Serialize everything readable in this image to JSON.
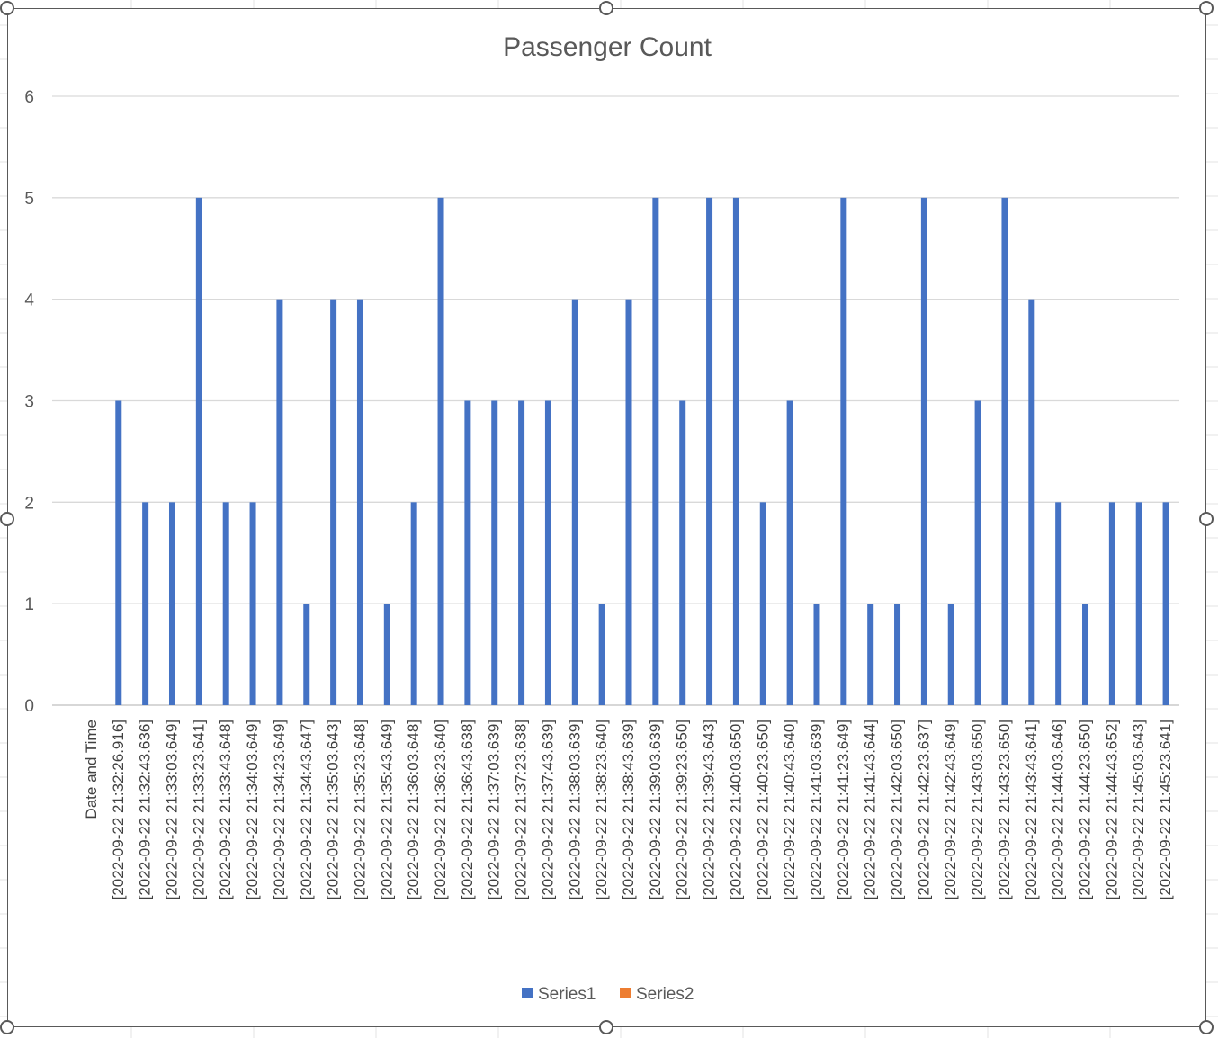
{
  "chart_data": {
    "type": "bar",
    "title": "Passenger Count",
    "ylim": [
      0,
      6
    ],
    "yticks": [
      0,
      1,
      2,
      3,
      4,
      5,
      6
    ],
    "grid": true,
    "legend_position": "bottom",
    "categories": [
      "Date and Time",
      "[2022-09-22 21:32:26.916]",
      "[2022-09-22 21:32:43.636]",
      "[2022-09-22 21:33:03.649]",
      "[2022-09-22 21:33:23.641]",
      "[2022-09-22 21:33:43.648]",
      "[2022-09-22 21:34:03.649]",
      "[2022-09-22 21:34:23.649]",
      "[2022-09-22 21:34:43.647]",
      "[2022-09-22 21:35:03.643]",
      "[2022-09-22 21:35:23.648]",
      "[2022-09-22 21:35:43.649]",
      "[2022-09-22 21:36:03.648]",
      "[2022-09-22 21:36:23.640]",
      "[2022-09-22 21:36:43.638]",
      "[2022-09-22 21:37:03.639]",
      "[2022-09-22 21:37:23.638]",
      "[2022-09-22 21:37:43.639]",
      "[2022-09-22 21:38:03.639]",
      "[2022-09-22 21:38:23.640]",
      "[2022-09-22 21:38:43.639]",
      "[2022-09-22 21:39:03.639]",
      "[2022-09-22 21:39:23.650]",
      "[2022-09-22 21:39:43.643]",
      "[2022-09-22 21:40:03.650]",
      "[2022-09-22 21:40:23.650]",
      "[2022-09-22 21:40:43.640]",
      "[2022-09-22 21:41:03.639]",
      "[2022-09-22 21:41:23.649]",
      "[2022-09-22 21:41:43.644]",
      "[2022-09-22 21:42:03.650]",
      "[2022-09-22 21:42:23.637]",
      "[2022-09-22 21:42:43.649]",
      "[2022-09-22 21:43:03.650]",
      "[2022-09-22 21:43:23.650]",
      "[2022-09-22 21:43:43.641]",
      "[2022-09-22 21:44:03.646]",
      "[2022-09-22 21:44:23.650]",
      "[2022-09-22 21:44:43.652]",
      "[2022-09-22 21:45:03.643]",
      "[2022-09-22 21:45:23.641]"
    ],
    "series": [
      {
        "name": "Series1",
        "color": "#4472c4",
        "values": [
          0,
          3,
          2,
          2,
          5,
          2,
          2,
          4,
          1,
          4,
          4,
          1,
          2,
          5,
          3,
          3,
          3,
          3,
          4,
          1,
          4,
          5,
          3,
          5,
          5,
          2,
          3,
          1,
          5,
          1,
          1,
          5,
          1,
          3,
          5,
          4,
          2,
          1,
          2,
          2,
          2
        ]
      },
      {
        "name": "Series2",
        "color": "#ed7d31",
        "values": [
          null,
          null,
          null,
          null,
          null,
          null,
          null,
          null,
          null,
          null,
          null,
          null,
          null,
          null,
          null,
          null,
          null,
          null,
          null,
          null,
          null,
          null,
          null,
          null,
          null,
          null,
          null,
          null,
          null,
          null,
          null,
          null,
          null,
          null,
          null,
          null,
          null,
          null,
          null,
          null,
          null
        ]
      }
    ]
  }
}
